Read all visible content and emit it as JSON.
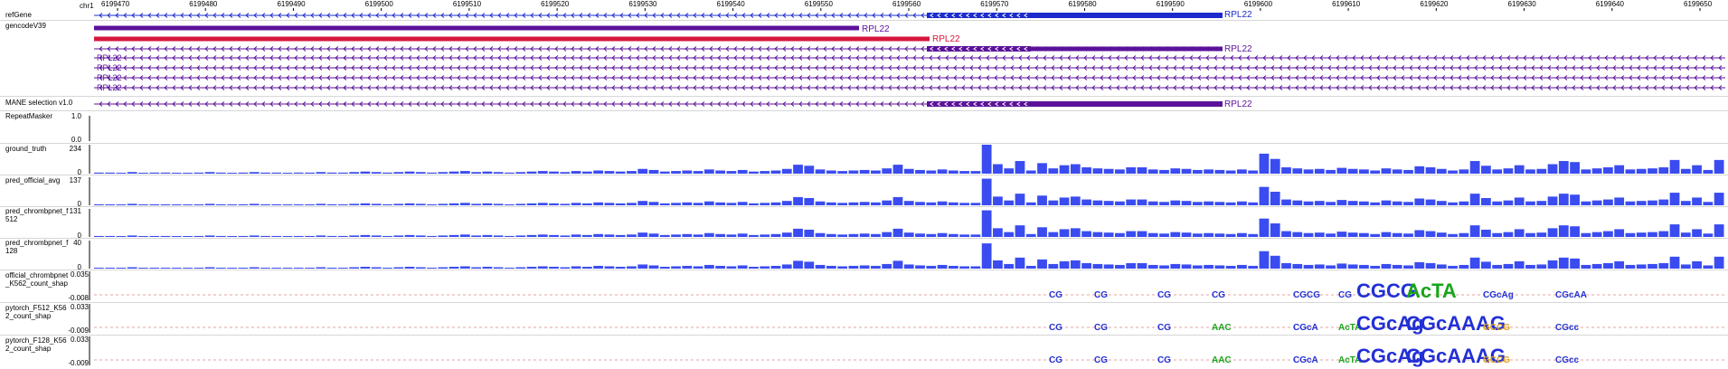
{
  "ruler": {
    "chrom": "chr1",
    "ticks": [
      "6199470",
      "6199480",
      "6199490",
      "6199500",
      "6199510",
      "6199520",
      "6199530",
      "6199540",
      "6199550",
      "6199560",
      "6199570",
      "6199580",
      "6199590",
      "6199600",
      "6199610",
      "6199620",
      "6199630",
      "6199640",
      "6199650"
    ]
  },
  "colors": {
    "refgene": "#1c2ccc",
    "gencode_red": "#d6163c",
    "gencode_purple": "#5b129a",
    "signal": "#3a4cf0",
    "separator": "#d6d6d6"
  },
  "tracks": {
    "refgene": {
      "label": "refGene",
      "gene": "RPL22"
    },
    "gencode": {
      "label": "gencodeV39",
      "genes": [
        "RPL22",
        "RPL22",
        "RPL22"
      ],
      "stacked_labels": [
        "RPL22",
        "RPL22",
        "RPL22",
        "RPL22",
        "RPL22"
      ]
    },
    "mane": {
      "label": "MANE selection v1.0",
      "gene": "RPL22"
    },
    "repeatmasker": {
      "label": "RepeatMasker",
      "axis_max": "1.0",
      "axis_min": "0.0"
    },
    "ground_truth": {
      "label": "ground_truth",
      "axis_max": "234",
      "axis_min": "0"
    },
    "pred_official_avg": {
      "label": "pred_official_avg",
      "axis_max": "137",
      "axis_min": "0"
    },
    "pred_chrombpnet_512": {
      "label": "pred_chrombpnet_f\n512",
      "axis_max": "131",
      "axis_min": "0"
    },
    "pred_chrombpnet_128": {
      "label": "pred_chrombpnet_f\n128",
      "axis_max": "40",
      "axis_min": "0"
    },
    "official_shap": {
      "label": "official_chrombpnet\n_K562_count_shap",
      "axis_max": "0.035",
      "axis_min": "-0.008"
    },
    "pytorch_512_shap": {
      "label": "pytorch_F512_K56\n2_count_shap",
      "axis_max": "0.033",
      "axis_min": "-0.009"
    },
    "pytorch_128_shap": {
      "label": "pytorch_F128_K56\n2_count_shap",
      "axis_max": "0.033",
      "axis_min": "-0.009"
    }
  },
  "signal_profile": [
    2,
    2,
    1,
    3,
    1,
    2,
    2,
    1,
    1,
    2,
    3,
    2,
    1,
    2,
    3,
    2,
    2,
    1,
    2,
    2,
    3,
    2,
    2,
    3,
    4,
    3,
    2,
    3,
    4,
    3,
    2,
    3,
    4,
    5,
    3,
    4,
    3,
    2,
    3,
    4,
    5,
    4,
    3,
    5,
    4,
    6,
    5,
    4,
    5,
    9,
    7,
    4,
    5,
    6,
    5,
    8,
    6,
    5,
    7,
    4,
    5,
    6,
    9,
    17,
    15,
    8,
    6,
    5,
    6,
    7,
    6,
    10,
    17,
    9,
    7,
    6,
    8,
    6,
    5,
    5,
    55,
    18,
    10,
    24,
    6,
    20,
    10,
    16,
    18,
    12,
    10,
    9,
    8,
    12,
    12,
    8,
    7,
    10,
    9,
    7,
    8,
    7,
    6,
    8,
    6,
    38,
    28,
    12,
    10,
    8,
    9,
    7,
    11,
    9,
    8,
    6,
    10,
    8,
    7,
    14,
    12,
    9,
    6,
    8,
    24,
    15,
    8,
    10,
    16,
    8,
    9,
    18,
    24,
    22,
    8,
    10,
    12,
    16,
    8,
    9,
    10,
    12,
    26,
    9,
    16,
    7,
    26
  ],
  "logo_tracks": {
    "official": [
      "CG",
      "CG",
      "CG",
      "CG",
      "CGCG",
      "CG",
      "CGCG",
      "AcTA",
      "CGcAg",
      "CGcAA"
    ],
    "pytorch_512": [
      "CG",
      "CG",
      "CG",
      "AAC",
      "CGcA",
      "AcTA",
      "CGcAg",
      "CGcAAAG",
      "GCCG",
      "CGcc"
    ],
    "pytorch_128": [
      "CG",
      "CG",
      "CG",
      "AAC",
      "CGcA",
      "AcTA",
      "CGcAg",
      "CGcAAAG",
      "GCCG",
      "CGcc"
    ]
  }
}
